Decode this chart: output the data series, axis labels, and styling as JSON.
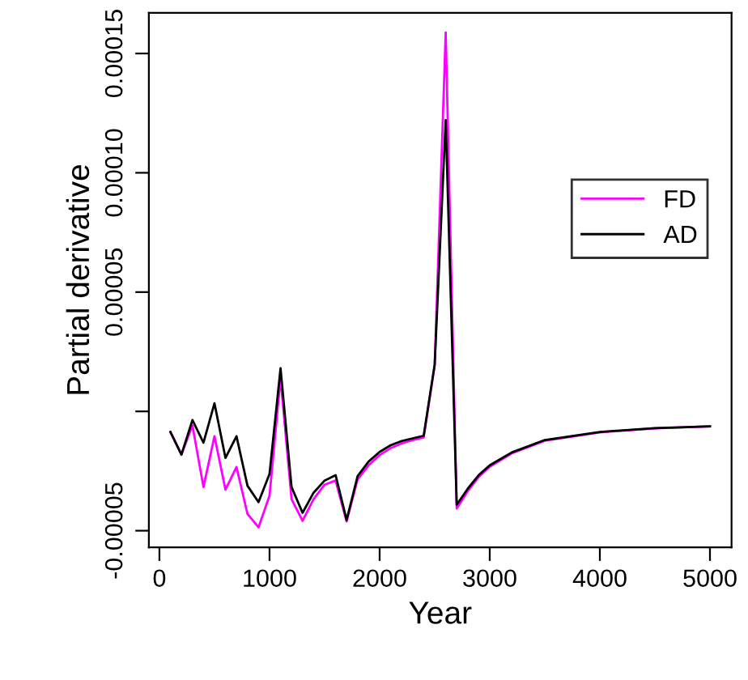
{
  "chart_data": {
    "type": "line",
    "xlabel": "Year",
    "ylabel": "Partial derivative",
    "x": [
      100,
      200,
      300,
      400,
      500,
      600,
      700,
      800,
      900,
      1000,
      1100,
      1200,
      1300,
      1400,
      1500,
      1600,
      1700,
      1800,
      1900,
      2000,
      2100,
      2200,
      2300,
      2400,
      2500,
      2600,
      2700,
      2800,
      2900,
      3000,
      3200,
      3500,
      4000,
      4500,
      5000
    ],
    "series": [
      {
        "name": "FD",
        "color": "#ff00ff",
        "values": [
          -8.6e-06,
          -1.81e-05,
          -5.9e-06,
          -3.17e-05,
          -1.04e-05,
          -3.28e-05,
          -2.33e-05,
          -4.3e-05,
          -4.86e-05,
          -3.53e-05,
          1.4e-05,
          -3.68e-05,
          -4.59e-05,
          -3.68e-05,
          -3.07e-05,
          -2.9e-05,
          -4.61e-05,
          -2.85e-05,
          -2.26e-05,
          -1.83e-05,
          -1.54e-05,
          -1.34e-05,
          -1.2e-05,
          -1.09e-05,
          1.92e-05,
          0.0001588,
          -4.07e-05,
          -3.34e-05,
          -2.75e-05,
          -2.32e-05,
          -1.76e-05,
          -1.23e-05,
          -8.8e-06,
          -7.1e-06,
          -6.3e-06
        ]
      },
      {
        "name": "AD",
        "color": "#000000",
        "values": [
          -8.6e-06,
          -1.81e-05,
          -3.6e-06,
          -1.31e-05,
          3.4e-06,
          -1.95e-05,
          -1.04e-05,
          -3.12e-05,
          -3.8e-05,
          -2.62e-05,
          1.81e-05,
          -3.17e-05,
          -4.25e-05,
          -3.41e-05,
          -2.9e-05,
          -2.67e-05,
          -4.55e-05,
          -2.71e-05,
          -2.1e-05,
          -1.7e-05,
          -1.42e-05,
          -1.24e-05,
          -1.13e-05,
          -1.02e-05,
          1.97e-05,
          0.0001221,
          -3.91e-05,
          -3.24e-05,
          -2.67e-05,
          -2.26e-05,
          -1.72e-05,
          -1.2e-05,
          -8.6e-06,
          -7e-06,
          -6.3e-06
        ]
      }
    ],
    "xlim": [
      -96,
      5196
    ],
    "ylim": [
      -5.7e-05,
      0.000167
    ],
    "xticks": [
      0,
      1000,
      2000,
      3000,
      4000,
      5000
    ],
    "yticks": [
      {
        "value": -5e-05,
        "label": "-0.00005"
      },
      {
        "value": 0,
        "label": null
      },
      {
        "value": 5e-05,
        "label": "0.00005"
      },
      {
        "value": 0.0001,
        "label": "0.00010"
      },
      {
        "value": 0.00015,
        "label": "0.00015"
      }
    ],
    "legend": "center right",
    "grid": false,
    "marker": "none",
    "line_style": "solid"
  }
}
